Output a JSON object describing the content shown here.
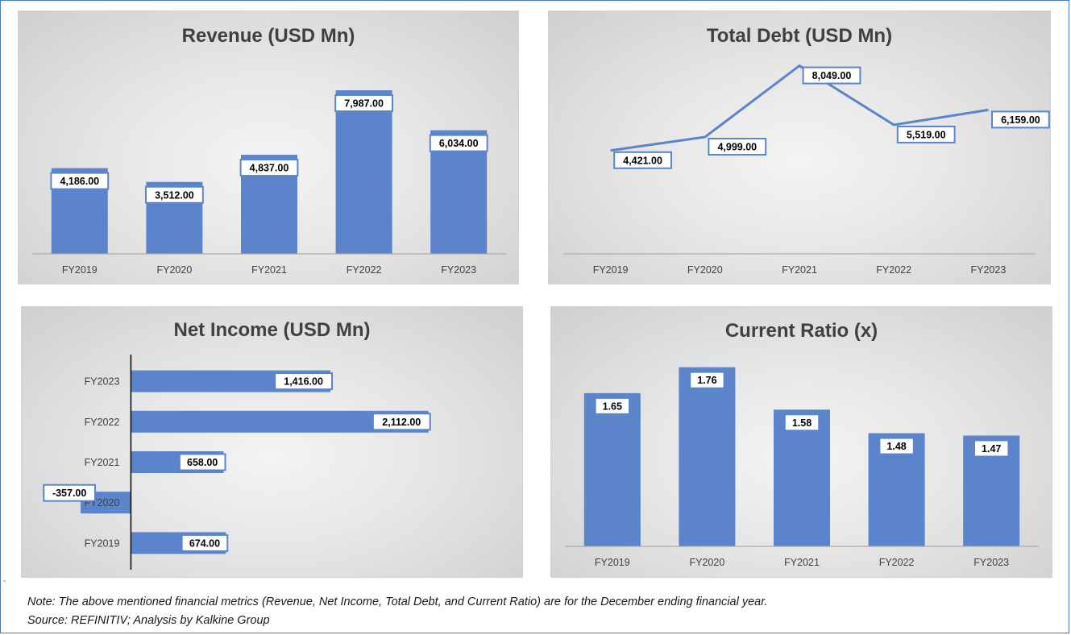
{
  "charts": {
    "revenue": {
      "title": "Revenue (USD Mn)"
    },
    "debt": {
      "title": "Total Debt (USD Mn)"
    },
    "income": {
      "title": "Net Income (USD Mn)"
    },
    "ratio": {
      "title": "Current Ratio (x)"
    }
  },
  "colors": {
    "bar": "#5b84cb",
    "line": "#5b84cb",
    "axis": "#aaaaaa",
    "label_border": "#5b84cb"
  },
  "chart_data": [
    {
      "type": "bar",
      "title": "Revenue (USD Mn)",
      "categories": [
        "FY2019",
        "FY2020",
        "FY2021",
        "FY2022",
        "FY2023"
      ],
      "values": [
        4186,
        3512,
        4837,
        7987,
        6034
      ],
      "data_labels": [
        "4,186.00",
        "3,512.00",
        "4,837.00",
        "7,987.00",
        "6,034.00"
      ],
      "ylim": [
        0,
        8500
      ],
      "grid": false
    },
    {
      "type": "line",
      "title": "Total Debt (USD Mn)",
      "categories": [
        "FY2019",
        "FY2020",
        "FY2021",
        "FY2022",
        "FY2023"
      ],
      "values": [
        4421,
        4999,
        8049,
        5519,
        6159
      ],
      "data_labels": [
        "4,421.00",
        "4,999.00",
        "8,049.00",
        "5,519.00",
        "6,159.00"
      ],
      "ylim": [
        0,
        9000
      ],
      "grid": false
    },
    {
      "type": "bar",
      "orientation": "horizontal",
      "title": "Net Income (USD Mn)",
      "categories": [
        "FY2023",
        "FY2022",
        "FY2021",
        "FY2020",
        "FY2019"
      ],
      "values": [
        1416,
        2112,
        658,
        -357,
        674
      ],
      "data_labels": [
        "1,416.00",
        "2,112.00",
        "658.00",
        "-357.00",
        "674.00"
      ],
      "xlim": [
        -500,
        2600
      ],
      "grid": false
    },
    {
      "type": "bar",
      "title": "Current Ratio (x)",
      "categories": [
        "FY2019",
        "FY2020",
        "FY2021",
        "FY2022",
        "FY2023"
      ],
      "values": [
        1.65,
        1.76,
        1.58,
        1.48,
        1.47
      ],
      "data_labels": [
        "1.65",
        "1.76",
        "1.58",
        "1.48",
        "1.47"
      ],
      "ylim": [
        1.0,
        1.8
      ],
      "grid": false
    }
  ],
  "note": {
    "line1": "Note: The above mentioned financial metrics (Revenue, Net Income, Total Debt, and Current Ratio) are for the December ending financial year.",
    "line2": "Source: REFINITIV; Analysis by Kalkine Group"
  },
  "corner_mark": "-"
}
